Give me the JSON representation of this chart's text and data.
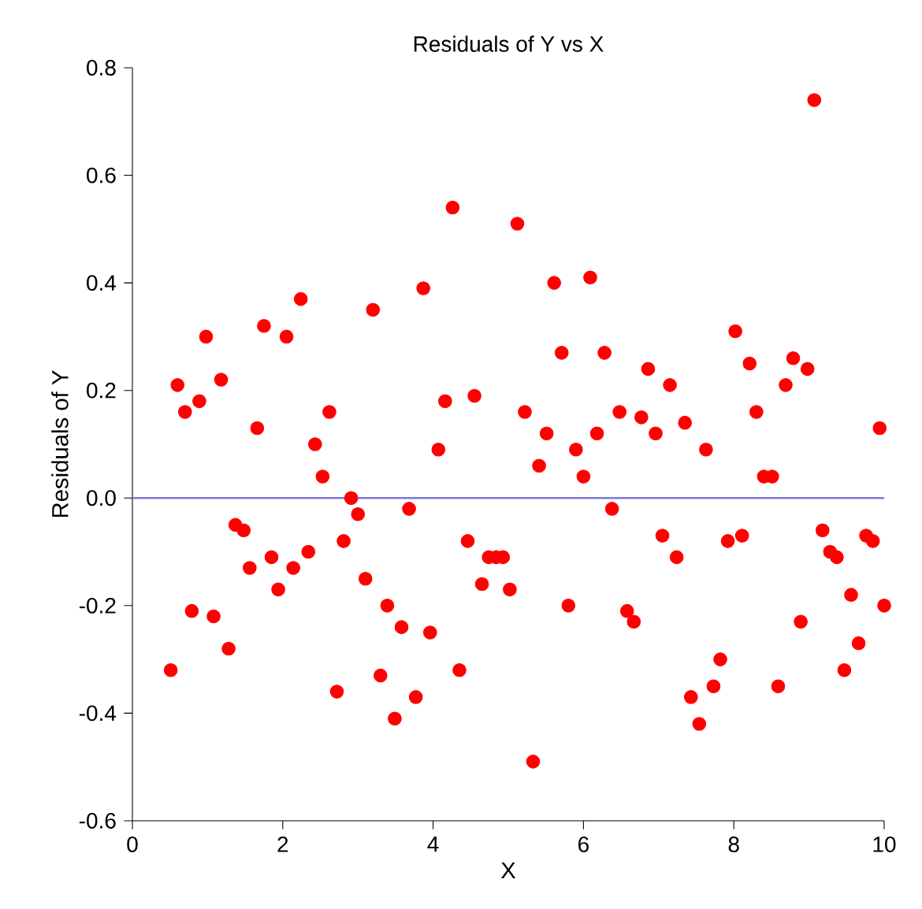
{
  "chart_data": {
    "type": "scatter",
    "title": "Residuals of Y vs X",
    "xlabel": "X",
    "ylabel": "Residuals of Y",
    "xlim": [
      0,
      10
    ],
    "xticks": [
      0,
      2,
      4,
      6,
      8,
      10
    ],
    "ylim": [
      -0.6,
      0.8
    ],
    "yticks": [
      {
        "value": -0.6,
        "label": "-0.6"
      },
      {
        "value": -0.4,
        "label": "-0.4"
      },
      {
        "value": -0.2,
        "label": "-0.2"
      },
      {
        "value": 0,
        "label": "0.0"
      },
      {
        "value": 0.2,
        "label": "0.2"
      },
      {
        "value": 0.4,
        "label": "0.4"
      },
      {
        "value": 0.6,
        "label": "0.6"
      },
      {
        "value": 0.8,
        "label": "0.8"
      }
    ],
    "marker": "circle",
    "grid": false,
    "ref_lines": [
      {
        "axis": "y",
        "value": 0,
        "color": "#7878d8"
      }
    ],
    "series": [
      {
        "color": "#ff0000",
        "x": [
          0.51,
          0.6,
          0.7,
          0.79,
          0.89,
          0.98,
          1.08,
          1.18,
          1.28,
          1.37,
          1.48,
          1.56,
          1.66,
          1.75,
          1.85,
          1.94,
          2.05,
          2.14,
          2.24,
          2.34,
          2.43,
          2.53,
          2.62,
          2.72,
          2.81,
          2.91,
          3.0,
          3.1,
          3.2,
          3.3,
          3.39,
          3.49,
          3.58,
          3.68,
          3.77,
          3.87,
          3.96,
          4.07,
          4.16,
          4.26,
          4.35,
          4.46,
          4.55,
          4.65,
          4.74,
          4.84,
          4.93,
          5.02,
          5.12,
          5.22,
          5.33,
          5.41,
          5.51,
          5.61,
          5.71,
          5.8,
          5.9,
          6.0,
          6.09,
          6.18,
          6.28,
          6.38,
          6.48,
          6.58,
          6.67,
          6.77,
          6.86,
          6.96,
          7.05,
          7.15,
          7.24,
          7.35,
          7.43,
          7.54,
          7.63,
          7.73,
          7.82,
          7.92,
          8.02,
          8.11,
          8.21,
          8.3,
          8.4,
          8.51,
          8.59,
          8.69,
          8.79,
          8.89,
          8.98,
          9.07,
          9.18,
          9.28,
          9.37,
          9.47,
          9.56,
          9.66,
          9.76,
          9.85,
          9.94,
          10.0
        ],
        "values": [
          -0.32,
          0.21,
          0.16,
          -0.21,
          0.18,
          0.3,
          -0.22,
          0.22,
          -0.28,
          -0.05,
          -0.06,
          -0.13,
          0.13,
          0.32,
          -0.11,
          -0.17,
          0.3,
          -0.13,
          0.37,
          -0.1,
          0.1,
          0.04,
          0.16,
          -0.36,
          -0.08,
          0.0,
          -0.03,
          -0.15,
          0.35,
          -0.33,
          -0.2,
          -0.41,
          -0.24,
          -0.02,
          -0.37,
          0.39,
          -0.25,
          0.09,
          0.18,
          0.54,
          -0.32,
          -0.08,
          0.19,
          -0.16,
          -0.11,
          -0.11,
          -0.11,
          -0.17,
          0.51,
          0.16,
          -0.49,
          0.06,
          0.12,
          0.4,
          0.27,
          -0.2,
          0.09,
          0.04,
          0.41,
          0.12,
          0.27,
          -0.02,
          0.16,
          -0.21,
          -0.23,
          0.15,
          0.24,
          0.12,
          -0.07,
          0.21,
          -0.11,
          0.14,
          -0.37,
          -0.42,
          0.09,
          -0.35,
          -0.3,
          -0.08,
          0.31,
          -0.07,
          0.25,
          0.16,
          0.04,
          0.04,
          -0.35,
          0.21,
          0.26,
          -0.23,
          0.24,
          0.74,
          -0.06,
          -0.1,
          -0.11,
          -0.32,
          -0.18,
          -0.27,
          -0.07,
          -0.08,
          0.13,
          -0.2
        ]
      }
    ]
  }
}
